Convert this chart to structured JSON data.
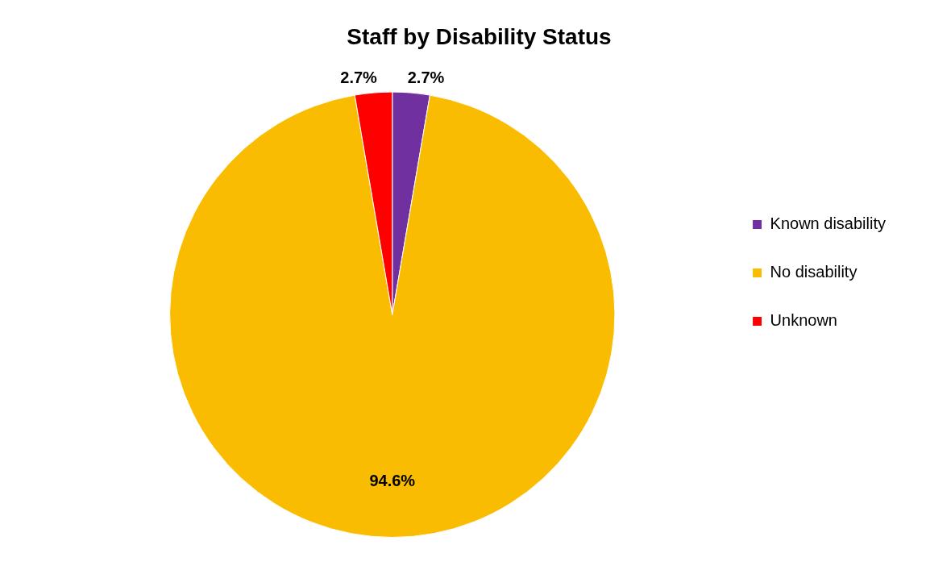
{
  "chart_data": {
    "type": "pie",
    "title": "Staff by Disability Status",
    "categories": [
      "Known disability",
      "No disability",
      "Unknown"
    ],
    "values": [
      2.7,
      94.6,
      2.7
    ],
    "colors": [
      "#7030a0",
      "#f9bc00",
      "#ff0000"
    ],
    "value_labels": [
      "2.7%",
      "94.6%",
      "2.7%"
    ],
    "legend": "right"
  }
}
